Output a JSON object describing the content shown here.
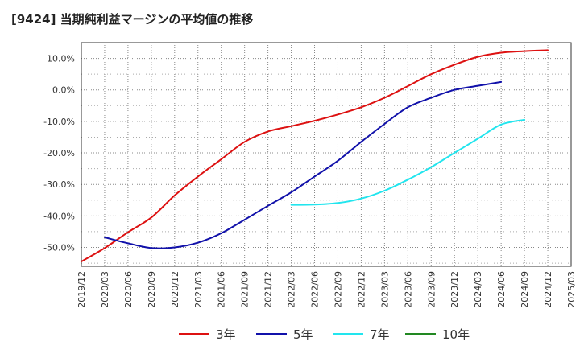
{
  "title": "[9424]  当期純利益マージンの平均値の推移",
  "chart_data": {
    "type": "line",
    "ylim": [
      -56,
      15
    ],
    "yticks": [
      10,
      0,
      -10,
      -20,
      -30,
      -40,
      -50
    ],
    "ytick_labels": [
      "10.0%",
      "0.0%",
      "-10.0%",
      "-20.0%",
      "-30.0%",
      "-40.0%",
      "-50.0%"
    ],
    "xtick_labels": [
      "2019/12",
      "2020/03",
      "2020/06",
      "2020/09",
      "2020/12",
      "2021/03",
      "2021/06",
      "2021/09",
      "2021/12",
      "2022/03",
      "2022/06",
      "2022/09",
      "2022/12",
      "2023/03",
      "2023/06",
      "2023/09",
      "2023/12",
      "2024/03",
      "2024/06",
      "2024/09",
      "2024/12",
      "2025/03"
    ],
    "grid": true,
    "legend_position": "bottom",
    "series": [
      {
        "name": "3年",
        "color": "#dd1111",
        "start_index": 0,
        "values": [
          -54.5,
          -50.2,
          -45.2,
          -40.5,
          -33.5,
          -27.5,
          -22.0,
          -16.5,
          -13.2,
          -11.5,
          -9.8,
          -7.8,
          -5.5,
          -2.5,
          1.2,
          5.0,
          8.0,
          10.5,
          11.8,
          12.3,
          12.6
        ]
      },
      {
        "name": "5年",
        "color": "#1111aa",
        "start_index": 1,
        "values": [
          -46.8,
          -48.7,
          -50.2,
          -50.0,
          -48.5,
          -45.5,
          -41.2,
          -36.8,
          -32.5,
          -27.5,
          -22.5,
          -16.5,
          -10.8,
          -5.5,
          -2.5,
          0.0,
          1.3,
          2.5
        ]
      },
      {
        "name": "7年",
        "color": "#22e5ee",
        "start_index": 9,
        "values": [
          -36.5,
          -36.4,
          -35.9,
          -34.5,
          -32.0,
          -28.5,
          -24.5,
          -20.0,
          -15.5,
          -11.0,
          -9.5
        ]
      },
      {
        "name": "10年",
        "color": "#228822",
        "start_index": 0,
        "values": []
      }
    ]
  }
}
